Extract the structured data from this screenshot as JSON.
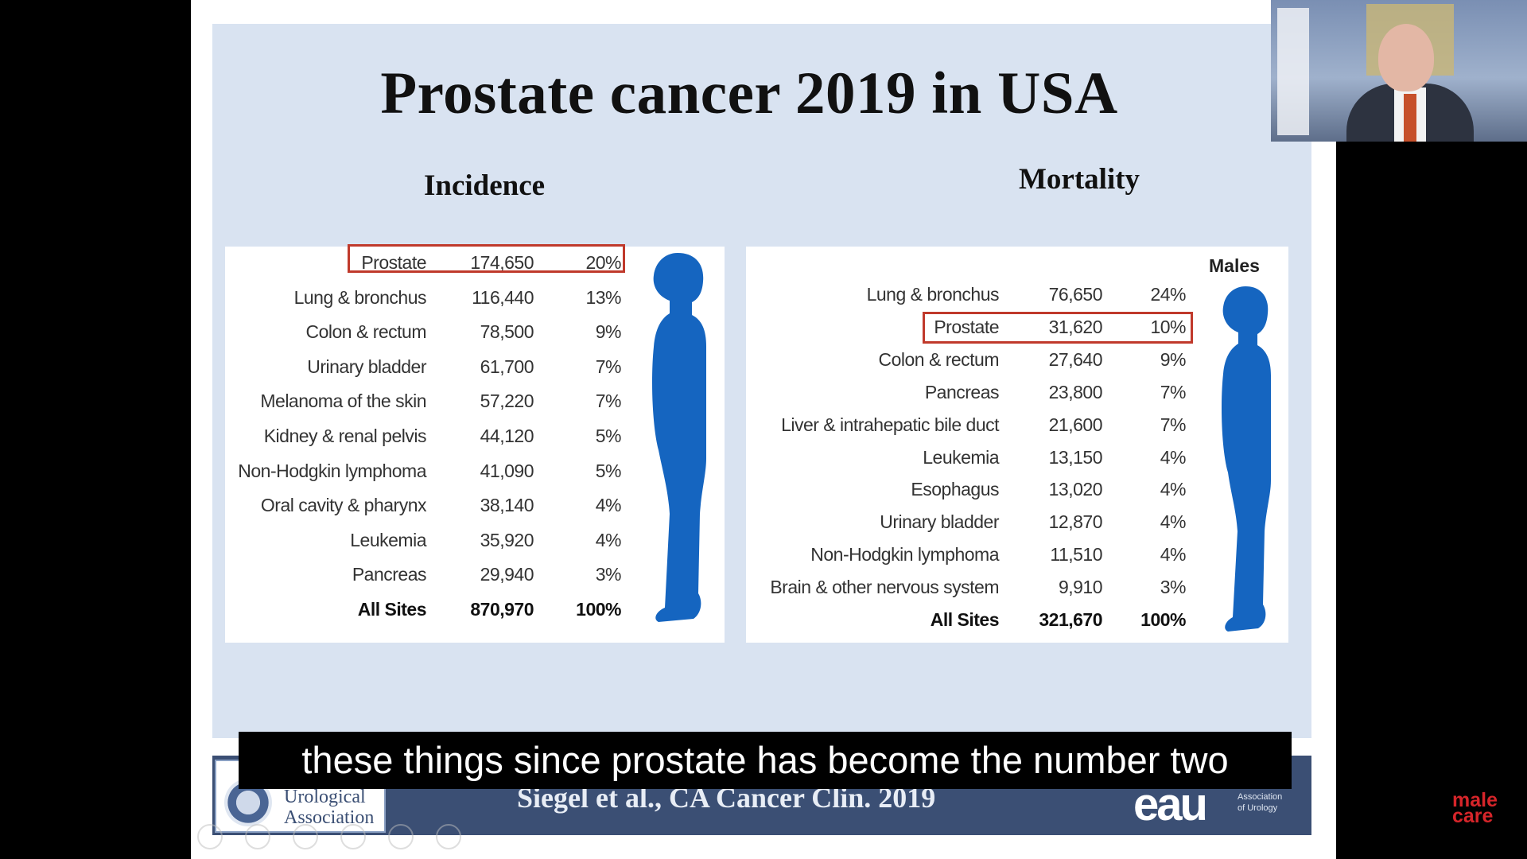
{
  "slide": {
    "title": "Prostate cancer 2019 in USA",
    "incidence_heading": "Incidence",
    "mortality_heading": "Mortality",
    "males_label": "Males"
  },
  "incidence": {
    "rows": [
      {
        "site": "Prostate",
        "count": "174,650",
        "pct": "20%"
      },
      {
        "site": "Lung & bronchus",
        "count": "116,440",
        "pct": "13%"
      },
      {
        "site": "Colon & rectum",
        "count": "78,500",
        "pct": "9%"
      },
      {
        "site": "Urinary bladder",
        "count": "61,700",
        "pct": "7%"
      },
      {
        "site": "Melanoma of the skin",
        "count": "57,220",
        "pct": "7%"
      },
      {
        "site": "Kidney & renal pelvis",
        "count": "44,120",
        "pct": "5%"
      },
      {
        "site": "Non-Hodgkin lymphoma",
        "count": "41,090",
        "pct": "5%"
      },
      {
        "site": "Oral cavity & pharynx",
        "count": "38,140",
        "pct": "4%"
      },
      {
        "site": "Leukemia",
        "count": "35,920",
        "pct": "4%"
      },
      {
        "site": "Pancreas",
        "count": "29,940",
        "pct": "3%"
      }
    ],
    "total": {
      "site": "All Sites",
      "count": "870,970",
      "pct": "100%"
    }
  },
  "mortality": {
    "rows": [
      {
        "site": "Lung & bronchus",
        "count": "76,650",
        "pct": "24%"
      },
      {
        "site": "Prostate",
        "count": "31,620",
        "pct": "10%"
      },
      {
        "site": "Colon & rectum",
        "count": "27,640",
        "pct": "9%"
      },
      {
        "site": "Pancreas",
        "count": "23,800",
        "pct": "7%"
      },
      {
        "site": "Liver & intrahepatic bile duct",
        "count": "21,600",
        "pct": "7%"
      },
      {
        "site": "Leukemia",
        "count": "13,150",
        "pct": "4%"
      },
      {
        "site": "Esophagus",
        "count": "13,020",
        "pct": "4%"
      },
      {
        "site": "Urinary bladder",
        "count": "12,870",
        "pct": "4%"
      },
      {
        "site": "Non-Hodgkin lymphoma",
        "count": "11,510",
        "pct": "4%"
      },
      {
        "site": "Brain & other nervous system",
        "count": "9,910",
        "pct": "3%"
      }
    ],
    "total": {
      "site": "All Sites",
      "count": "321,670",
      "pct": "100%"
    }
  },
  "footer": {
    "logo_text_line1": "Urological",
    "logo_text_line2": "Association",
    "citation": "Siegel et al., CA Cancer Clin. 2019",
    "eau_wordmark": "eau",
    "eau_sub_line1": "Association",
    "eau_sub_line2": "of Urology"
  },
  "subtitle": "these things since prostate has become the number two",
  "watermark": {
    "line1": "male",
    "line2": "care"
  },
  "colors": {
    "slide_bg": "#d9e3f1",
    "highlight": "#c0392b",
    "silhouette": "#1565c0",
    "footer": "#3b4f74"
  },
  "icons": [
    "male-silhouette-icon",
    "eau-seal-icon",
    "player-control-icon"
  ]
}
